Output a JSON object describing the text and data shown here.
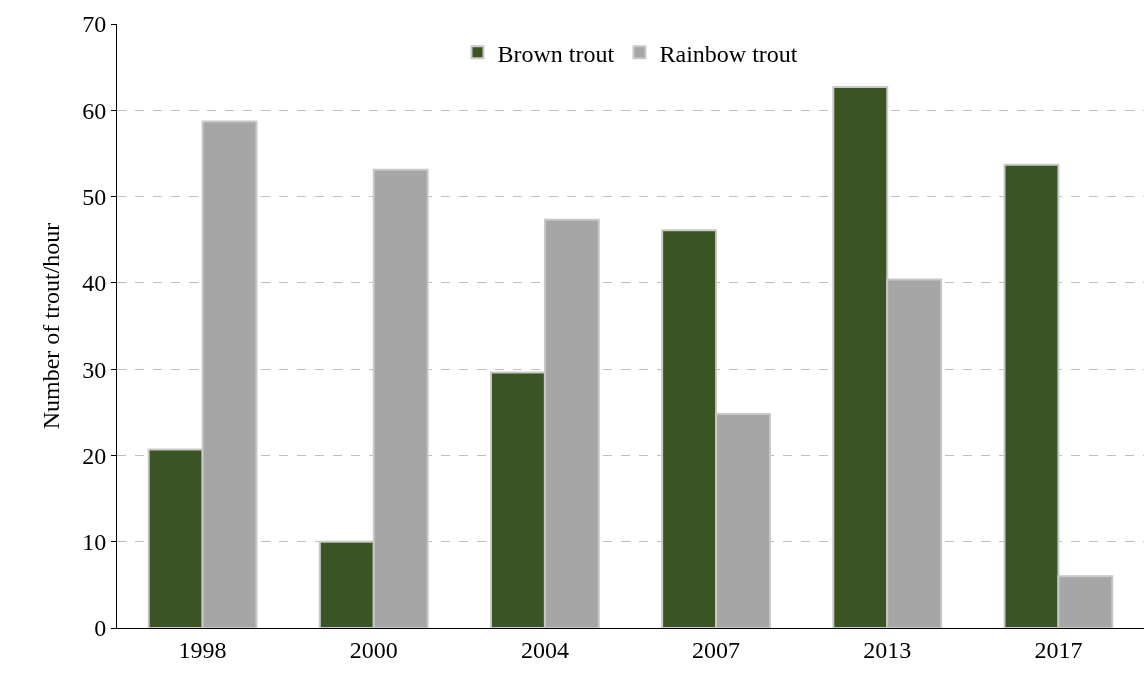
{
  "chart_data": {
    "type": "bar",
    "ylabel": "Number of trout/hour",
    "categories": [
      "1998",
      "2000",
      "2004",
      "2007",
      "2013",
      "2017"
    ],
    "series": [
      {
        "name": "Brown trout",
        "color": "#3a5424",
        "values": [
          20.7,
          10.0,
          29.6,
          46.1,
          62.7,
          53.7
        ]
      },
      {
        "name": "Rainbow trout",
        "color": "#a6a6a6",
        "values": [
          58.7,
          53.1,
          47.3,
          24.8,
          40.4,
          6.0
        ]
      }
    ],
    "ylim": [
      0,
      70
    ],
    "yticks": [
      0,
      10,
      20,
      30,
      40,
      50,
      60,
      70
    ],
    "grid": "y",
    "legend": "top"
  }
}
